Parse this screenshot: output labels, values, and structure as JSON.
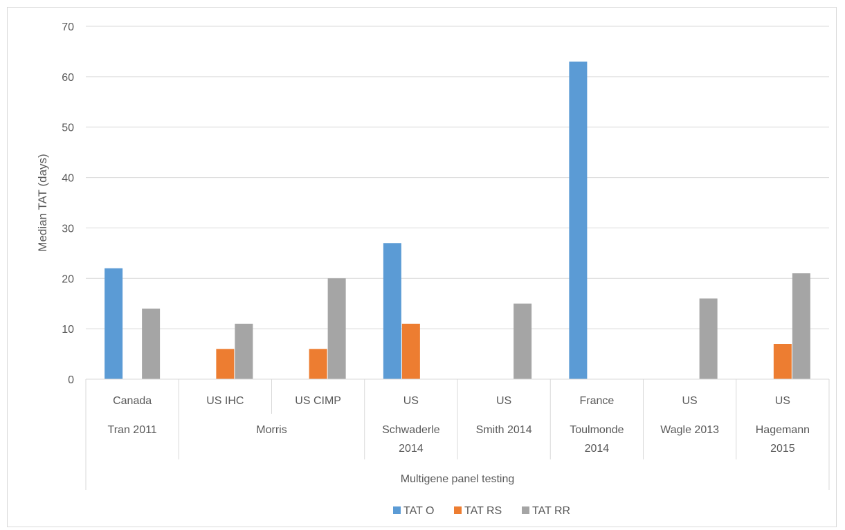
{
  "chart_data": {
    "type": "bar",
    "ylabel": "Median TAT (days)",
    "ylim": [
      0,
      70
    ],
    "yticks": [
      0,
      10,
      20,
      30,
      40,
      50,
      60,
      70
    ],
    "grid": true,
    "legend_position": "bottom",
    "categories": [
      {
        "level1": "Canada",
        "level2": "Tran 2011"
      },
      {
        "level1": "US IHC",
        "level2": "Morris"
      },
      {
        "level1": "US CIMP",
        "level2": "Morris"
      },
      {
        "level1": "US",
        "level2": "Schwaderle 2014"
      },
      {
        "level1": "US",
        "level2": "Smith 2014"
      },
      {
        "level1": "France",
        "level2": "Toulmonde 2014"
      },
      {
        "level1": "US",
        "level2": "Wagle 2013"
      },
      {
        "level1": "US",
        "level2": "Hagemann 2015"
      }
    ],
    "groups_level2": [
      {
        "label": "Tran 2011",
        "lines": [
          "Tran 2011"
        ],
        "span": [
          0,
          0
        ]
      },
      {
        "label": "Morris",
        "lines": [
          "Morris"
        ],
        "span": [
          1,
          2
        ]
      },
      {
        "label": "Schwaderle 2014",
        "lines": [
          "Schwaderle",
          "2014"
        ],
        "span": [
          3,
          3
        ]
      },
      {
        "label": "Smith 2014",
        "lines": [
          "Smith 2014"
        ],
        "span": [
          4,
          4
        ]
      },
      {
        "label": "Toulmonde 2014",
        "lines": [
          "Toulmonde",
          "2014"
        ],
        "span": [
          5,
          5
        ]
      },
      {
        "label": "Wagle 2013",
        "lines": [
          "Wagle 2013"
        ],
        "span": [
          6,
          6
        ]
      },
      {
        "label": "Hagemann 2015",
        "lines": [
          "Hagemann",
          "2015"
        ],
        "span": [
          7,
          7
        ]
      }
    ],
    "group_level3": "Multigene panel testing",
    "series": [
      {
        "name": "TAT O",
        "color": "#5b9bd5",
        "values": [
          22,
          null,
          null,
          27,
          null,
          63,
          null,
          null
        ]
      },
      {
        "name": "TAT RS",
        "color": "#ed7d31",
        "values": [
          null,
          6,
          6,
          11,
          null,
          null,
          null,
          7
        ]
      },
      {
        "name": "TAT RR",
        "color": "#a5a5a5",
        "values": [
          14,
          11,
          20,
          null,
          15,
          null,
          16,
          21
        ]
      }
    ]
  }
}
